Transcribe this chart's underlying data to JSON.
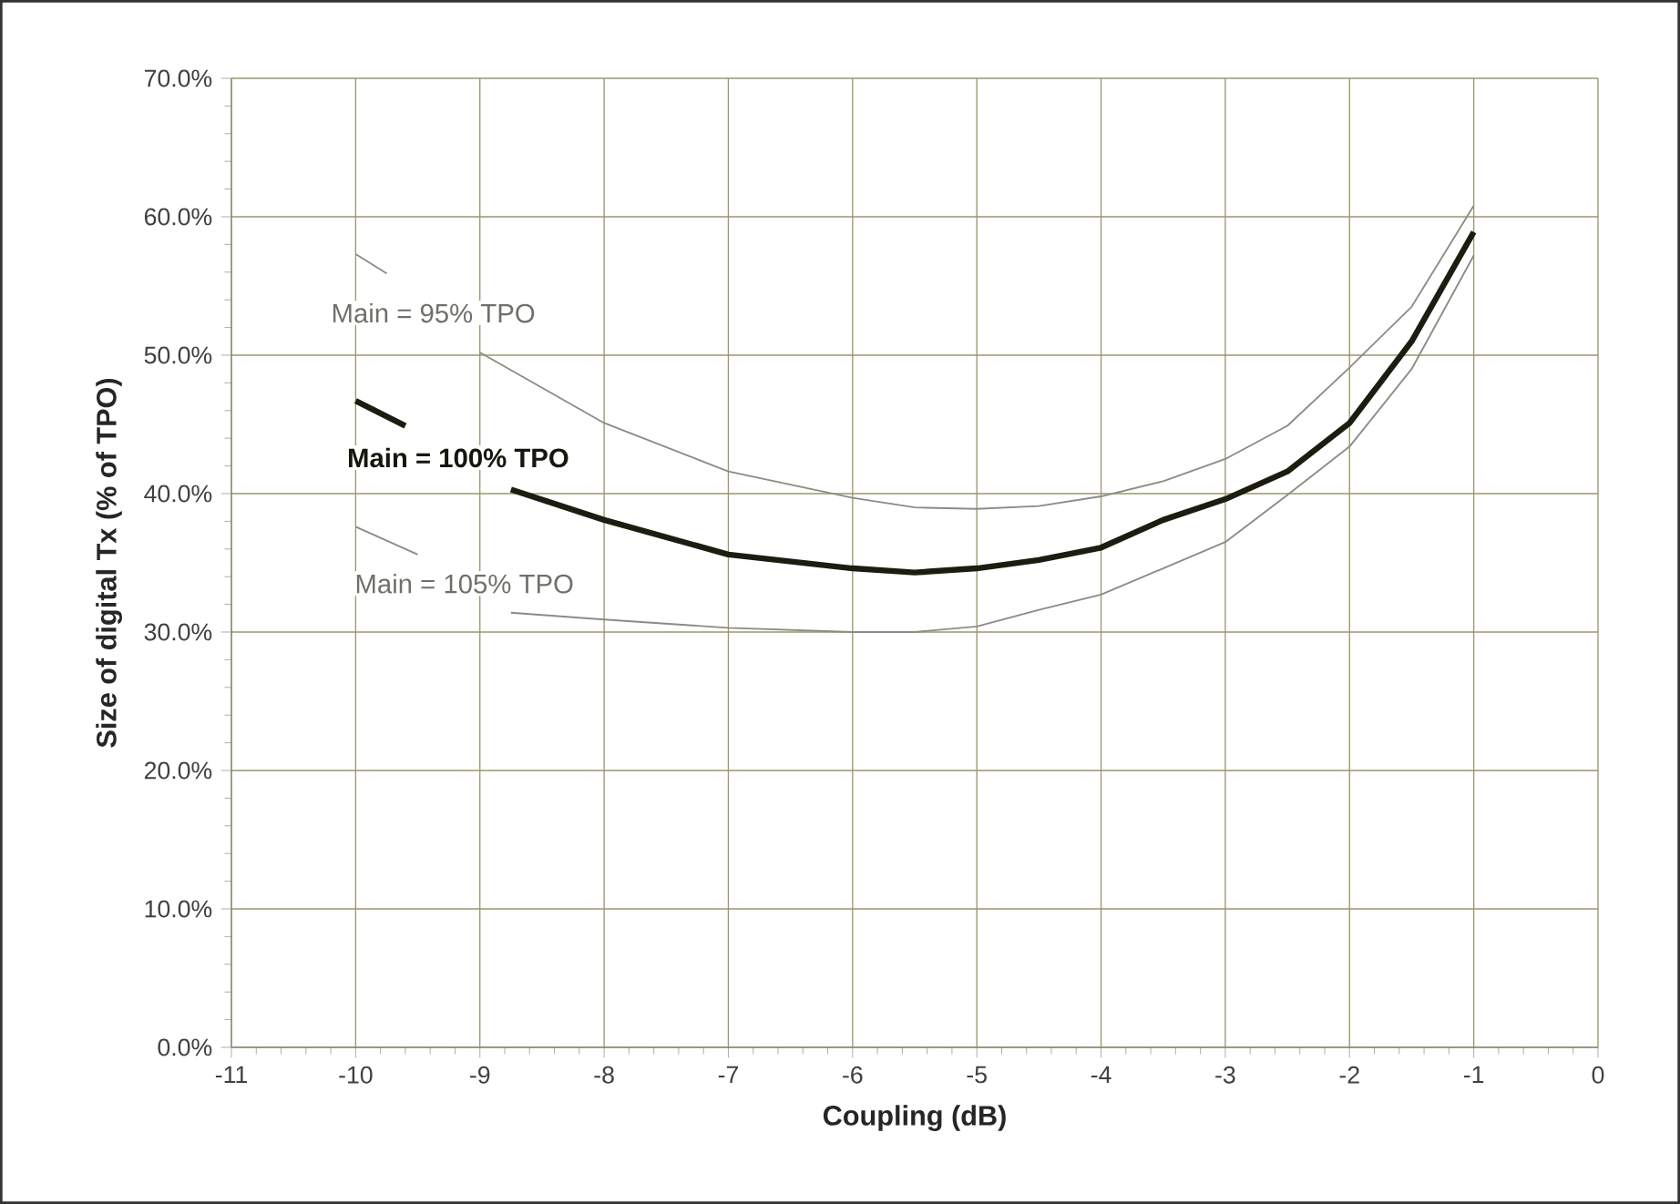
{
  "chart_data": {
    "type": "line",
    "xlabel": "Coupling (dB)",
    "ylabel": "Size of digital Tx (% of TPO)",
    "xlim": [
      -11,
      0
    ],
    "xticks": [
      -11,
      -10,
      -9,
      -8,
      -7,
      -6,
      -5,
      -4,
      -3,
      -2,
      -1,
      0
    ],
    "ylim": [
      0,
      70
    ],
    "yticks": [
      {
        "value": 0,
        "label": "0.0%"
      },
      {
        "value": 10,
        "label": "10.0%"
      },
      {
        "value": 20,
        "label": "20.0%"
      },
      {
        "value": 30,
        "label": "30.0%"
      },
      {
        "value": 40,
        "label": "40.0%"
      },
      {
        "value": 50,
        "label": "50.0%"
      },
      {
        "value": 60,
        "label": "60.0%"
      },
      {
        "value": 70,
        "label": "70.0%"
      }
    ],
    "grid": true,
    "marker": "none",
    "line_style": "solid",
    "series": [
      {
        "name": "Main =  95% TPO",
        "color": "#8c8c84",
        "x": [
          -10,
          -9.75,
          -9.4,
          -9,
          -8,
          -7,
          -6,
          -5.5,
          -5,
          -4.5,
          -4,
          -3.5,
          -3,
          -2.5,
          -2,
          -1.5,
          -1
        ],
        "values": [
          57.3,
          55.9,
          null,
          50.2,
          45.1,
          41.6,
          39.7,
          39.0,
          38.9,
          39.1,
          39.8,
          40.9,
          42.5,
          44.9,
          49.1,
          53.5,
          60.8
        ]
      },
      {
        "name": "Main = 100% TPO",
        "color": "#1c1c10",
        "x": [
          -10,
          -9.6,
          -9.2,
          -8.75,
          -8,
          -7,
          -6,
          -5.5,
          -5,
          -4.5,
          -4,
          -3.5,
          -3,
          -2.5,
          -2,
          -1.5,
          -1
        ],
        "values": [
          46.7,
          44.9,
          null,
          40.3,
          38.1,
          35.6,
          34.6,
          34.3,
          34.6,
          35.2,
          36.1,
          38.1,
          39.6,
          41.6,
          45.1,
          51.0,
          58.9
        ]
      },
      {
        "name": "Main = 105% TPO",
        "color": "#8c8c84",
        "x": [
          -10,
          -9.5,
          -9.1,
          -8.75,
          -8,
          -7,
          -6,
          -5.5,
          -5,
          -4.5,
          -4,
          -3.5,
          -3,
          -2.5,
          -2,
          -1.5,
          -1
        ],
        "values": [
          37.6,
          35.6,
          null,
          31.4,
          30.9,
          30.3,
          30.0,
          30.0,
          30.4,
          31.6,
          32.7,
          34.6,
          36.5,
          39.9,
          43.4,
          49.0,
          57.2
        ]
      }
    ]
  }
}
